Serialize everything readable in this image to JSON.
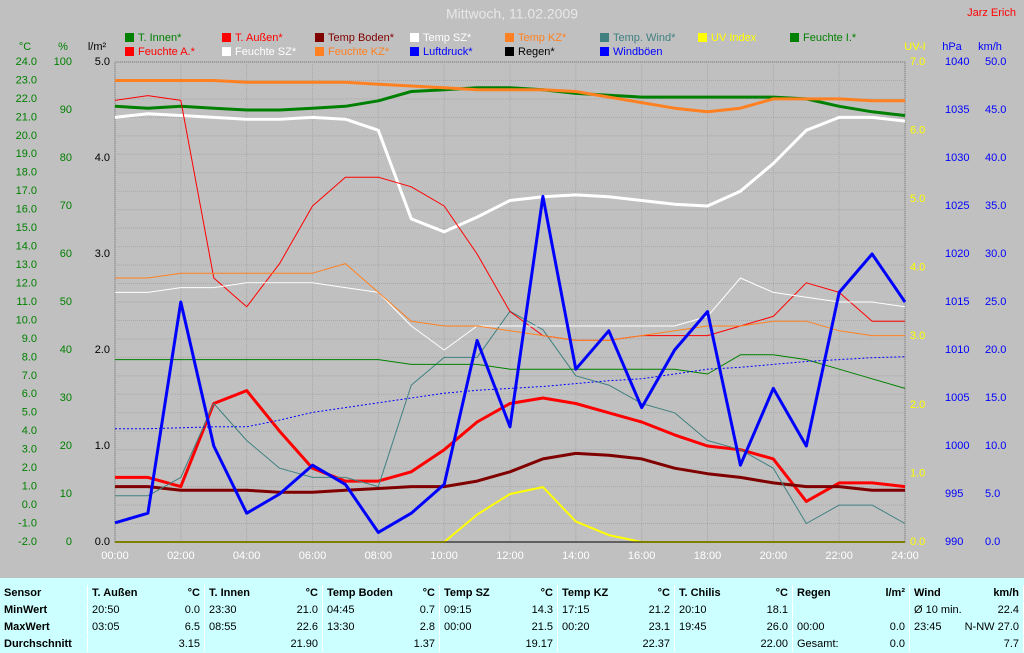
{
  "chart_data": {
    "type": "line",
    "title": "Mittwoch, 11.02.2009",
    "author": "Jarz Erich",
    "x": [
      0,
      1,
      2,
      3,
      4,
      5,
      6,
      7,
      8,
      9,
      10,
      11,
      12,
      13,
      14,
      15,
      16,
      17,
      18,
      19,
      20,
      21,
      22,
      23,
      24
    ],
    "xlim": [
      0,
      24
    ],
    "xticks": [
      {
        "value": 0,
        "label": "00:00"
      },
      {
        "value": 2,
        "label": "02:00"
      },
      {
        "value": 4,
        "label": "04:00"
      },
      {
        "value": 6,
        "label": "06:00"
      },
      {
        "value": 8,
        "label": "08:00"
      },
      {
        "value": 10,
        "label": "10:00"
      },
      {
        "value": 12,
        "label": "12:00"
      },
      {
        "value": 14,
        "label": "14:00"
      },
      {
        "value": 16,
        "label": "16:00"
      },
      {
        "value": 18,
        "label": "18:00"
      },
      {
        "value": 20,
        "label": "20:00"
      },
      {
        "value": 22,
        "label": "22:00"
      },
      {
        "value": 24,
        "label": "24:00"
      }
    ],
    "grid": true,
    "y_axes": [
      {
        "label": "°C",
        "color": "#008000",
        "lim": [
          -2,
          24
        ],
        "ticks": [
          {
            "value": -2,
            "label": "-2.0"
          },
          {
            "value": -1,
            "label": "-1.0"
          },
          {
            "value": 0,
            "label": "0.0"
          },
          {
            "value": 1,
            "label": "1.0"
          },
          {
            "value": 2,
            "label": "2.0"
          },
          {
            "value": 3,
            "label": "3.0"
          },
          {
            "value": 4,
            "label": "4.0"
          },
          {
            "value": 5,
            "label": "5.0"
          },
          {
            "value": 6,
            "label": "6.0"
          },
          {
            "value": 7,
            "label": "7.0"
          },
          {
            "value": 8,
            "label": "8.0"
          },
          {
            "value": 9,
            "label": "9.0"
          },
          {
            "value": 10,
            "label": "10.0"
          },
          {
            "value": 11,
            "label": "11.0"
          },
          {
            "value": 12,
            "label": "12.0"
          },
          {
            "value": 13,
            "label": "13.0"
          },
          {
            "value": 14,
            "label": "14.0"
          },
          {
            "value": 15,
            "label": "15.0"
          },
          {
            "value": 16,
            "label": "16.0"
          },
          {
            "value": 17,
            "label": "17.0"
          },
          {
            "value": 18,
            "label": "18.0"
          },
          {
            "value": 19,
            "label": "19.0"
          },
          {
            "value": 20,
            "label": "20.0"
          },
          {
            "value": 21,
            "label": "21.0"
          },
          {
            "value": 22,
            "label": "22.0"
          },
          {
            "value": 23,
            "label": "23.0"
          },
          {
            "value": 24,
            "label": "24.0"
          }
        ]
      },
      {
        "label": "%",
        "color": "#008000",
        "lim": [
          0,
          100
        ],
        "ticks": [
          0,
          10,
          20,
          30,
          40,
          50,
          60,
          70,
          80,
          90,
          100
        ]
      },
      {
        "label": "l/m²",
        "color": "#000000",
        "lim": [
          0,
          5
        ],
        "ticks": [
          {
            "value": 0,
            "label": "0.0"
          },
          {
            "value": 1,
            "label": "1.0"
          },
          {
            "value": 2,
            "label": "2.0"
          },
          {
            "value": 3,
            "label": "3.0"
          },
          {
            "value": 4,
            "label": "4.0"
          },
          {
            "value": 5,
            "label": "5.0"
          }
        ]
      },
      {
        "label": "UV-I",
        "color": "#ffff00",
        "lim": [
          0,
          7
        ],
        "ticks": [
          {
            "value": 0,
            "label": "0.0"
          },
          {
            "value": 1,
            "label": "1.0"
          },
          {
            "value": 2,
            "label": "2.0"
          },
          {
            "value": 3,
            "label": "3.0"
          },
          {
            "value": 4,
            "label": "4.0"
          },
          {
            "value": 5,
            "label": "5.0"
          },
          {
            "value": 6,
            "label": "6.0"
          },
          {
            "value": 7,
            "label": "7.0"
          }
        ]
      },
      {
        "label": "hPa",
        "color": "#0000ff",
        "lim": [
          990,
          1040
        ],
        "ticks": [
          990,
          995,
          1000,
          1005,
          1010,
          1015,
          1020,
          1025,
          1030,
          1035,
          1040
        ]
      },
      {
        "label": "km/h",
        "color": "#0000ff",
        "lim": [
          0,
          50
        ],
        "ticks": [
          {
            "value": 0,
            "label": "0.0"
          },
          {
            "value": 5,
            "label": "5.0"
          },
          {
            "value": 10,
            "label": "10.0"
          },
          {
            "value": 15,
            "label": "15.0"
          },
          {
            "value": 20,
            "label": "20.0"
          },
          {
            "value": 25,
            "label": "25.0"
          },
          {
            "value": 30,
            "label": "30.0"
          },
          {
            "value": 35,
            "label": "35.0"
          },
          {
            "value": 40,
            "label": "40.0"
          },
          {
            "value": 45,
            "label": "45.0"
          },
          {
            "value": 50,
            "label": "50.0"
          }
        ]
      }
    ],
    "series": [
      {
        "name": "T. Innen*",
        "color": "#008000",
        "axis": 0,
        "line_width": 3,
        "values": [
          21.6,
          21.5,
          21.6,
          21.5,
          21.4,
          21.4,
          21.5,
          21.6,
          21.9,
          22.4,
          22.5,
          22.6,
          22.6,
          22.5,
          22.3,
          22.2,
          22.1,
          22.1,
          22.1,
          22.1,
          22.1,
          22.0,
          21.6,
          21.3,
          21.1
        ]
      },
      {
        "name": "T. Außen*",
        "color": "#ff0000",
        "axis": 0,
        "line_width": 3,
        "values": [
          1.5,
          1.5,
          1.0,
          5.5,
          6.2,
          4.0,
          2.0,
          1.3,
          1.3,
          1.8,
          3.0,
          4.5,
          5.5,
          5.8,
          5.5,
          5.0,
          4.5,
          3.8,
          3.2,
          3.0,
          2.5,
          0.2,
          1.2,
          1.2,
          1.0
        ]
      },
      {
        "name": "Temp Boden*",
        "color": "#800000",
        "axis": 0,
        "line_width": 3,
        "values": [
          1.0,
          1.0,
          0.8,
          0.8,
          0.8,
          0.7,
          0.7,
          0.8,
          0.9,
          1.0,
          1.0,
          1.3,
          1.8,
          2.5,
          2.8,
          2.7,
          2.5,
          2.0,
          1.7,
          1.5,
          1.2,
          1.0,
          1.0,
          0.8,
          0.8
        ]
      },
      {
        "name": "Temp SZ*",
        "color": "#ffffff",
        "axis": 0,
        "line_width": 3,
        "values": [
          21.0,
          21.2,
          21.1,
          21.0,
          20.9,
          20.9,
          21.0,
          20.9,
          20.3,
          15.5,
          14.8,
          15.6,
          16.5,
          16.7,
          16.8,
          16.7,
          16.5,
          16.3,
          16.2,
          17.0,
          18.5,
          20.3,
          21.0,
          21.0,
          20.8
        ]
      },
      {
        "name": "Temp KZ*",
        "color": "#ff8020",
        "axis": 0,
        "line_width": 3,
        "values": [
          23.0,
          23.0,
          23.0,
          23.0,
          22.9,
          22.9,
          22.9,
          22.9,
          22.8,
          22.7,
          22.6,
          22.5,
          22.5,
          22.5,
          22.4,
          22.1,
          21.8,
          21.5,
          21.3,
          21.5,
          22.0,
          22.0,
          22.0,
          21.9,
          21.9
        ]
      },
      {
        "name": "Temp. Wind*",
        "color": "#408080",
        "axis": 0,
        "line_width": 1,
        "values": [
          0.5,
          0.5,
          1.5,
          5.5,
          3.5,
          2.0,
          1.5,
          1.5,
          1.0,
          6.5,
          8.0,
          8.0,
          10.5,
          9.5,
          7.0,
          6.5,
          5.5,
          5.0,
          3.5,
          3.0,
          2.0,
          -1.0,
          0.0,
          0.0,
          -1.0
        ]
      },
      {
        "name": "UV Index",
        "color": "#ffff00",
        "axis": 3,
        "line_width": 2,
        "values": [
          0,
          0,
          0,
          0,
          0,
          0,
          0,
          0,
          0,
          0,
          0,
          0.4,
          0.7,
          0.8,
          0.3,
          0.1,
          0,
          0,
          0,
          0,
          0,
          0,
          0,
          0,
          0
        ]
      },
      {
        "name": "Feuchte I.*",
        "color": "#008000",
        "axis": 1,
        "line_width": 1,
        "values": [
          38,
          38,
          38,
          38,
          38,
          38,
          38,
          38,
          38,
          37,
          37,
          37,
          36,
          36,
          36,
          36,
          36,
          36,
          35,
          39,
          39,
          38,
          36,
          34,
          32
        ]
      },
      {
        "name": "Feuchte A.*",
        "color": "#ff0000",
        "axis": 1,
        "line_width": 1,
        "values": [
          92,
          93,
          92,
          55,
          49,
          58,
          70,
          76,
          76,
          74,
          70,
          60,
          48,
          43,
          42,
          42,
          43,
          43,
          43,
          45,
          47,
          54,
          52,
          46,
          46
        ]
      },
      {
        "name": "Feuchte SZ*",
        "color": "#ffffff",
        "axis": 1,
        "line_width": 1,
        "values": [
          52,
          52,
          53,
          53,
          54,
          54,
          54,
          53,
          52,
          45,
          40,
          45,
          45,
          45,
          45,
          45,
          45,
          45,
          47,
          55,
          52,
          51,
          50,
          50,
          49
        ]
      },
      {
        "name": "Feuchte KZ*",
        "color": "#ff8020",
        "axis": 1,
        "line_width": 1,
        "values": [
          55,
          55,
          56,
          56,
          56,
          56,
          56,
          58,
          52,
          46,
          45,
          45,
          44,
          43,
          42,
          42,
          43,
          44,
          45,
          45,
          46,
          46,
          44,
          43,
          43
        ]
      },
      {
        "name": "Luftdruck*",
        "color": "#0000ff",
        "axis": 4,
        "line_width": 1,
        "dash": true,
        "values": [
          1001.8,
          1001.8,
          1001.9,
          1002.0,
          1002.0,
          1002.7,
          1003.5,
          1004.0,
          1004.5,
          1005.0,
          1005.5,
          1005.8,
          1006.0,
          1006.2,
          1006.5,
          1006.8,
          1007.0,
          1007.5,
          1008.0,
          1008.2,
          1008.5,
          1008.8,
          1009.0,
          1009.2,
          1009.3
        ]
      },
      {
        "name": "Regen*",
        "color": "#000000",
        "axis": 2,
        "line_width": 1,
        "values": [
          0,
          0,
          0,
          0,
          0,
          0,
          0,
          0,
          0,
          0,
          0,
          0,
          0,
          0,
          0,
          0,
          0,
          0,
          0,
          0,
          0,
          0,
          0,
          0,
          0
        ]
      },
      {
        "name": "Windböen",
        "color": "#0000ff",
        "axis": 5,
        "line_width": 3,
        "values": [
          2,
          3,
          25,
          10,
          3,
          5,
          8,
          6,
          1,
          3,
          6,
          21,
          12,
          36,
          18,
          22,
          14,
          20,
          24,
          8,
          16,
          10,
          26,
          30,
          25
        ]
      }
    ]
  },
  "table": {
    "header": [
      [
        "Sensor"
      ],
      [
        "T. Außen",
        "°C"
      ],
      [
        "T. Innen",
        "°C"
      ],
      [
        "Temp Boden",
        "°C"
      ],
      [
        "Temp SZ",
        "°C"
      ],
      [
        "Temp KZ",
        "°C"
      ],
      [
        "T. Chilis",
        "°C"
      ],
      [
        "Regen",
        "l/m²"
      ],
      [
        "Wind",
        "km/h"
      ]
    ],
    "rows": [
      [
        [
          "MinWert"
        ],
        [
          "20:50",
          "0.0"
        ],
        [
          "23:30",
          "21.0"
        ],
        [
          "04:45",
          "0.7"
        ],
        [
          "09:15",
          "14.3"
        ],
        [
          "17:15",
          "21.2"
        ],
        [
          "20:10",
          "18.1"
        ],
        [],
        [
          "Ø 10 min.",
          "22.4"
        ]
      ],
      [
        [
          "MaxWert"
        ],
        [
          "03:05",
          "6.5"
        ],
        [
          "08:55",
          "22.6"
        ],
        [
          "13:30",
          "2.8"
        ],
        [
          "00:00",
          "21.5"
        ],
        [
          "00:20",
          "23.1"
        ],
        [
          "19:45",
          "26.0"
        ],
        [
          "00:00",
          "0.0"
        ],
        [
          "23:45",
          "N-NW 27.0"
        ]
      ],
      [
        [
          "Durchschnitt"
        ],
        [
          "3.15"
        ],
        [
          "21.90"
        ],
        [
          "1.37"
        ],
        [
          "19.17"
        ],
        [
          "22.37"
        ],
        [
          "22.00"
        ],
        [
          "Gesamt:",
          "0.0"
        ],
        [
          "7.7"
        ]
      ]
    ]
  }
}
